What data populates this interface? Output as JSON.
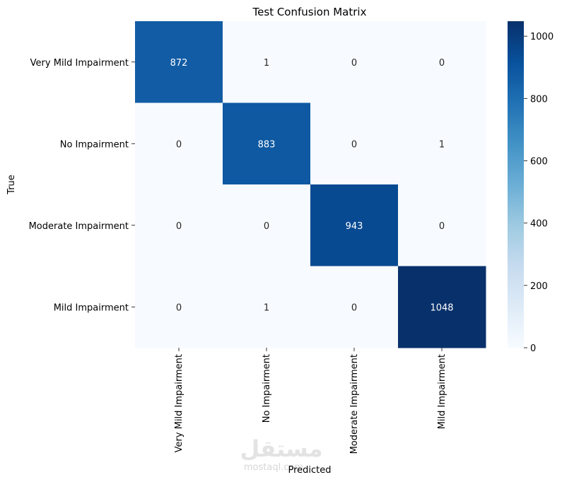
{
  "chart_data": {
    "type": "heatmap",
    "title": "Test Confusion Matrix",
    "xlabel": "Predicted",
    "ylabel": "True",
    "row_labels": [
      "Very Mild Impairment",
      "No Impairment",
      "Moderate Impairment",
      "Mild Impairment"
    ],
    "col_labels": [
      "Very Mild Impairment",
      "No Impairment",
      "Moderate Impairment",
      "Mild Impairment"
    ],
    "matrix": [
      [
        872,
        1,
        0,
        0
      ],
      [
        0,
        883,
        0,
        1
      ],
      [
        0,
        0,
        943,
        0
      ],
      [
        0,
        1,
        0,
        1048
      ]
    ],
    "colormap": "Blues",
    "colorbar": {
      "min": 0,
      "max": 1048,
      "ticks": [
        0,
        200,
        400,
        600,
        800,
        1000
      ]
    }
  },
  "colors": {
    "low": "#f7fbff",
    "high": "#08306b",
    "text_dark": "#262626",
    "text_light": "#ffffff"
  },
  "watermark": {
    "logo": "مستقل",
    "site": "mostaql.com"
  }
}
